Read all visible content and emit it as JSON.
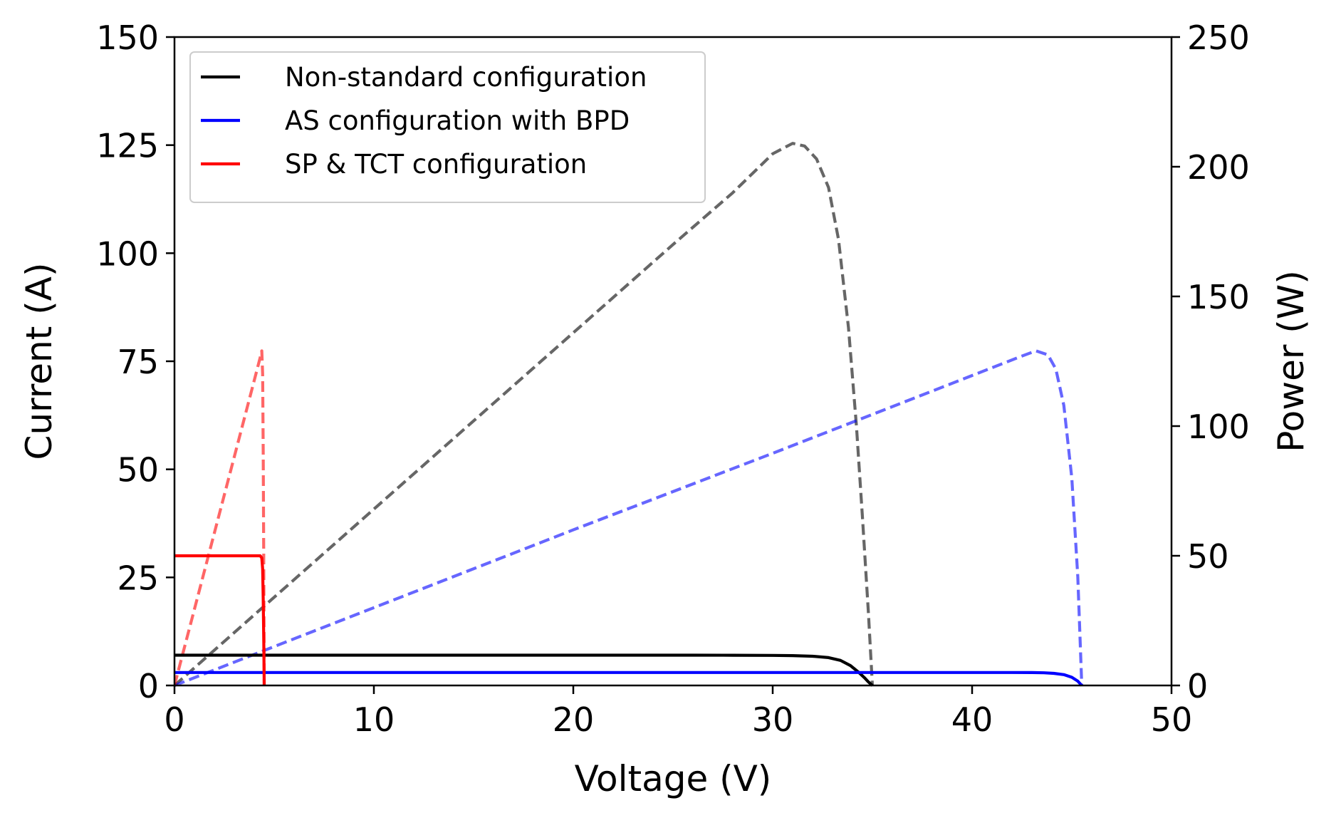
{
  "chart_data": {
    "type": "line",
    "xlabel": "Voltage (V)",
    "ylabel": "Current (A)",
    "y2label": "Power (W)",
    "xlim": [
      0,
      50
    ],
    "ylim": [
      0,
      150
    ],
    "y2lim": [
      0,
      250
    ],
    "x_ticks": [
      0,
      10,
      20,
      30,
      40,
      50
    ],
    "y_ticks": [
      0,
      25,
      50,
      75,
      100,
      125,
      150
    ],
    "y2_ticks": [
      0,
      50,
      100,
      150,
      200,
      250
    ],
    "grid": false,
    "legend_position": "top-left",
    "series": [
      {
        "name": "Non-standard configuration",
        "axis": "current",
        "color": "#000000",
        "line_style": "solid",
        "points": [
          [
            0,
            7.0
          ],
          [
            26,
            7.0
          ],
          [
            28,
            6.99
          ],
          [
            30,
            6.95
          ],
          [
            31,
            6.9
          ],
          [
            32,
            6.75
          ],
          [
            32.8,
            6.45
          ],
          [
            33.4,
            5.8
          ],
          [
            33.9,
            4.6
          ],
          [
            34.3,
            3.1
          ],
          [
            34.6,
            1.8
          ],
          [
            34.8,
            0.8
          ],
          [
            35.0,
            0
          ]
        ],
        "in_legend": true
      },
      {
        "name": "AS configuration with BPD",
        "axis": "current",
        "color": "#0000ff",
        "line_style": "solid",
        "points": [
          [
            0,
            3.0
          ],
          [
            42,
            3.0
          ],
          [
            43,
            2.98
          ],
          [
            43.6,
            2.93
          ],
          [
            44.1,
            2.8
          ],
          [
            44.6,
            2.5
          ],
          [
            45.0,
            1.9
          ],
          [
            45.3,
            1.0
          ],
          [
            45.5,
            0
          ]
        ],
        "in_legend": true
      },
      {
        "name": "SP & TCT configuration",
        "axis": "current",
        "color": "#ff0000",
        "line_style": "solid",
        "points": [
          [
            0,
            30
          ],
          [
            4.3,
            30
          ],
          [
            4.38,
            29.5
          ],
          [
            4.42,
            27
          ],
          [
            4.45,
            20
          ],
          [
            4.48,
            10
          ],
          [
            4.5,
            0
          ]
        ],
        "in_legend": true
      },
      {
        "name": "",
        "axis": "power",
        "color": "#000000",
        "opacity": 0.6,
        "line_style": "dashed",
        "points": [
          [
            0,
            0
          ],
          [
            5,
            34
          ],
          [
            10,
            68
          ],
          [
            15,
            102
          ],
          [
            20,
            136
          ],
          [
            25,
            170
          ],
          [
            28,
            190
          ],
          [
            30,
            205
          ],
          [
            31,
            209
          ],
          [
            31.6,
            208
          ],
          [
            32.2,
            203
          ],
          [
            32.8,
            192
          ],
          [
            33.3,
            172
          ],
          [
            33.8,
            138
          ],
          [
            34.2,
            100
          ],
          [
            34.5,
            65
          ],
          [
            34.8,
            28
          ],
          [
            35.0,
            0
          ]
        ],
        "in_legend": false
      },
      {
        "name": "",
        "axis": "power",
        "color": "#0000ff",
        "opacity": 0.6,
        "line_style": "dashed",
        "points": [
          [
            0,
            0
          ],
          [
            10,
            30
          ],
          [
            20,
            60
          ],
          [
            30,
            89.5
          ],
          [
            40,
            119.5
          ],
          [
            42.5,
            127
          ],
          [
            43.2,
            129
          ],
          [
            43.8,
            127.5
          ],
          [
            44.2,
            122
          ],
          [
            44.6,
            108
          ],
          [
            45.0,
            80
          ],
          [
            45.3,
            42
          ],
          [
            45.5,
            0
          ]
        ],
        "in_legend": false
      },
      {
        "name": "",
        "axis": "power",
        "color": "#ff0000",
        "opacity": 0.6,
        "line_style": "dashed",
        "points": [
          [
            0,
            0
          ],
          [
            1,
            29.4
          ],
          [
            2,
            58.8
          ],
          [
            3,
            88.2
          ],
          [
            4,
            117.6
          ],
          [
            4.3,
            126.5
          ],
          [
            4.38,
            129
          ],
          [
            4.42,
            120
          ],
          [
            4.45,
            90
          ],
          [
            4.48,
            45
          ],
          [
            4.5,
            0
          ]
        ],
        "in_legend": false
      }
    ]
  }
}
